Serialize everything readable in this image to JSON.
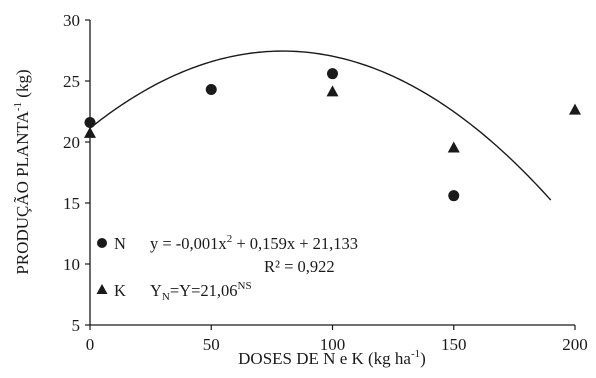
{
  "chart_data": {
    "type": "scatter",
    "xlabel": "DOSES  DE  N e K (kg ha",
    "xlabel_sup": "-1",
    "xlabel_end": ")",
    "ylabel": "PRODUÇÃO  PLANTA",
    "ylabel_sup": "-1",
    "ylabel_end": " (kg)",
    "xlim": [
      0,
      200
    ],
    "ylim": [
      5,
      30
    ],
    "x_ticks": [
      0,
      50,
      100,
      150,
      200
    ],
    "y_ticks": [
      5,
      10,
      15,
      20,
      25,
      30
    ],
    "x_tick_labels": [
      "0",
      "50",
      "100",
      "150",
      "200"
    ],
    "y_tick_labels": [
      "5",
      "10",
      "15",
      "20",
      "25",
      "30"
    ],
    "grid": false,
    "series": [
      {
        "name": "N",
        "marker": "circle",
        "points": [
          [
            0,
            21.6
          ],
          [
            50,
            24.3
          ],
          [
            100,
            25.6
          ],
          [
            150,
            15.6
          ]
        ]
      },
      {
        "name": "K",
        "marker": "triangle",
        "points": [
          [
            0,
            20.7
          ],
          [
            100,
            24.1
          ],
          [
            150,
            19.5
          ],
          [
            200,
            22.6
          ]
        ]
      }
    ],
    "fit": {
      "series": "N",
      "a": -0.001,
      "b": 0.159,
      "c": 21.133,
      "x_range": [
        0,
        190
      ]
    },
    "legend": {
      "placement": "bottom-left",
      "n_label": "N",
      "n_equation": "y = -0,001x",
      "n_eq_sup": "2",
      "n_eq_rest": "  + 0,159x  + 21,133",
      "r2_label": "R² = 0,922",
      "k_label": "K",
      "k_eq_main": "Y",
      "k_eq_sub": "N",
      "k_eq_rest": "=Y=21,06",
      "k_eq_sup": "NS"
    },
    "colors": {
      "ink": "#1a1a1a",
      "background": "#ffffff"
    }
  }
}
